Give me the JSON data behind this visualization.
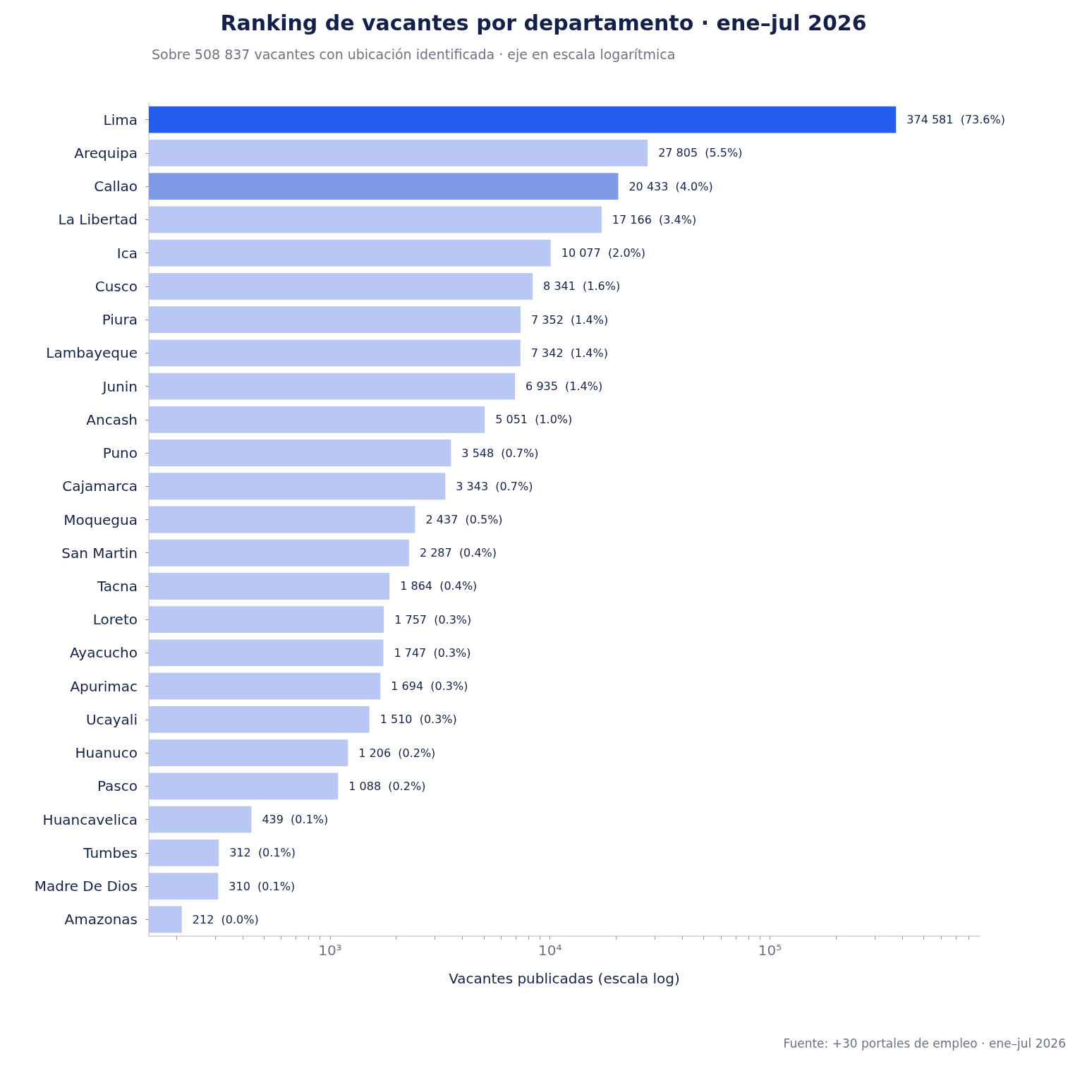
{
  "chart_data": {
    "type": "bar",
    "orientation": "horizontal",
    "log": "x",
    "title": "Ranking de vacantes por departamento · ene–jul 2026",
    "subtitle": "Sobre 508 837 vacantes con ubicación identificada · eje en escala logarítmica",
    "xlabel": "Vacantes publicadas (escala log)",
    "annotations": [
      "Fuente: +30 portales de empleo · ene–jul 2026"
    ],
    "categories": [
      "Lima",
      "Arequipa",
      "Callao",
      "La Libertad",
      "Ica",
      "Cusco",
      "Piura",
      "Lambayeque",
      "Junin",
      "Ancash",
      "Puno",
      "Cajamarca",
      "Moquegua",
      "San Martin",
      "Tacna",
      "Loreto",
      "Ayacucho",
      "Apurimac",
      "Ucayali",
      "Huanuco",
      "Pasco",
      "Huancavelica",
      "Tumbes",
      "Madre De Dios",
      "Amazonas"
    ],
    "values": [
      374581,
      27805,
      20433,
      17166,
      10077,
      8341,
      7352,
      7342,
      6935,
      5051,
      3548,
      3343,
      2437,
      2287,
      1864,
      1757,
      1747,
      1694,
      1510,
      1206,
      1088,
      439,
      312,
      310,
      212
    ],
    "value_labels": [
      "374 581  (73.6%)",
      "27 805  (5.5%)",
      "20 433  (4.0%)",
      "17 166  (3.4%)",
      "10 077  (2.0%)",
      "8 341  (1.6%)",
      "7 352  (1.4%)",
      "7 342  (1.4%)",
      "6 935  (1.4%)",
      "5 051  (1.0%)",
      "3 548  (0.7%)",
      "3 343  (0.7%)",
      "2 437  (0.5%)",
      "2 287  (0.4%)",
      "1 864  (0.4%)",
      "1 757  (0.3%)",
      "1 747  (0.3%)",
      "1 694  (0.3%)",
      "1 510  (0.3%)",
      "1 206  (0.2%)",
      "1 088  (0.2%)",
      "439  (0.1%)",
      "312  (0.1%)",
      "310  (0.1%)",
      "212  (0.0%)"
    ],
    "colors": [
      "#245ef0",
      "#b8c7f3",
      "#7f9be8",
      "#b8c7f3",
      "#b8c7f3",
      "#b8c7f3",
      "#b8c7f3",
      "#b8c7f3",
      "#b8c7f3",
      "#b8c7f3",
      "#b8c7f3",
      "#b8c7f3",
      "#b8c7f3",
      "#b8c7f3",
      "#b8c7f3",
      "#b8c7f3",
      "#b8c7f3",
      "#b8c7f3",
      "#b8c7f3",
      "#b8c7f3",
      "#b8c7f3",
      "#b8c7f3",
      "#b8c7f3",
      "#b8c7f3",
      "#b8c7f3"
    ],
    "xlim": [
      150,
      900000
    ],
    "xticks": [
      {
        "value": 200,
        "label": null
      },
      {
        "value": 300,
        "label": null
      },
      {
        "value": 400,
        "label": null
      },
      {
        "value": 500,
        "label": null
      },
      {
        "value": 600,
        "label": null
      },
      {
        "value": 700,
        "label": null
      },
      {
        "value": 800,
        "label": null
      },
      {
        "value": 900,
        "label": null
      },
      {
        "value": 1000,
        "label": "10³"
      },
      {
        "value": 2000,
        "label": null
      },
      {
        "value": 3000,
        "label": null
      },
      {
        "value": 4000,
        "label": null
      },
      {
        "value": 5000,
        "label": null
      },
      {
        "value": 6000,
        "label": null
      },
      {
        "value": 7000,
        "label": null
      },
      {
        "value": 8000,
        "label": null
      },
      {
        "value": 9000,
        "label": null
      },
      {
        "value": 10000,
        "label": "10⁴"
      },
      {
        "value": 20000,
        "label": null
      },
      {
        "value": 30000,
        "label": null
      },
      {
        "value": 40000,
        "label": null
      },
      {
        "value": 50000,
        "label": null
      },
      {
        "value": 60000,
        "label": null
      },
      {
        "value": 70000,
        "label": null
      },
      {
        "value": 80000,
        "label": null
      },
      {
        "value": 90000,
        "label": null
      },
      {
        "value": 100000,
        "label": "10⁵"
      },
      {
        "value": 200000,
        "label": null
      },
      {
        "value": 300000,
        "label": null
      },
      {
        "value": 400000,
        "label": null
      },
      {
        "value": 500000,
        "label": null
      },
      {
        "value": 600000,
        "label": null
      },
      {
        "value": 700000,
        "label": null
      },
      {
        "value": 800000,
        "label": null
      }
    ],
    "grid": false
  }
}
